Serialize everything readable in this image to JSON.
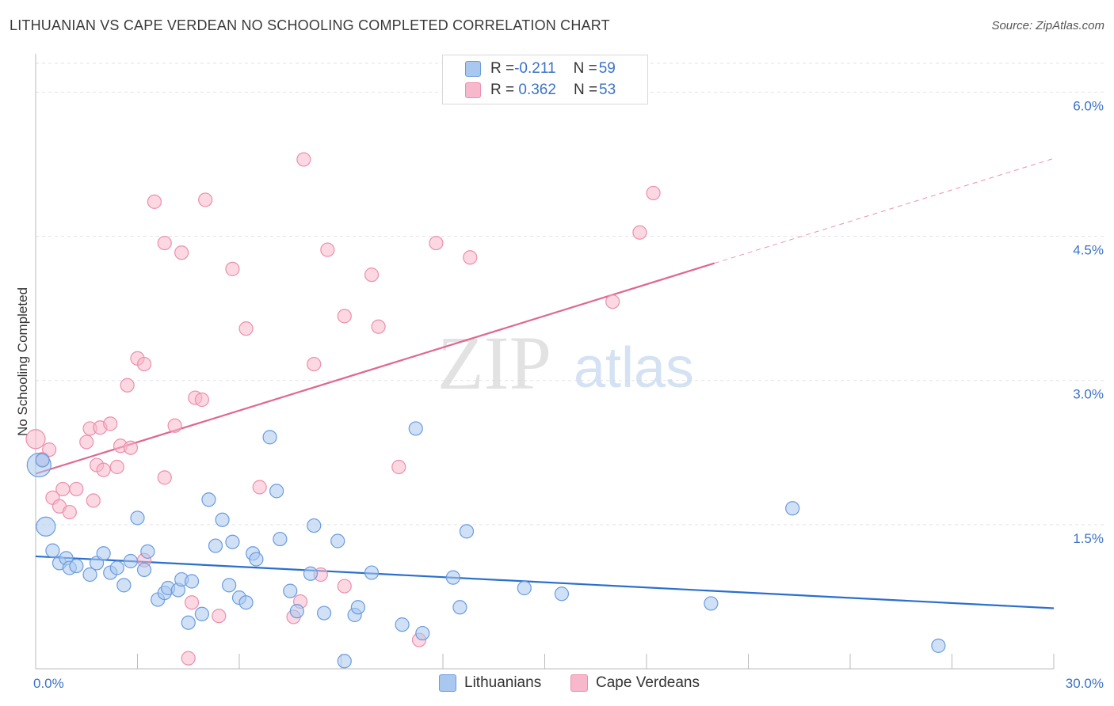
{
  "title": "LITHUANIAN VS CAPE VERDEAN NO SCHOOLING COMPLETED CORRELATION CHART",
  "source": "Source: ZipAtlas.com",
  "watermark": {
    "zip": "ZIP",
    "atlas": "atlas"
  },
  "colors": {
    "blue_fill": "#a9c8ef",
    "blue_stroke": "#6a9be0",
    "blue_line": "#2a6fce",
    "pink_fill": "#f7b8cb",
    "pink_stroke": "#ec8fac",
    "pink_line": "#e0678f",
    "axis_text": "#3a72c8",
    "grid": "#e3e3e3"
  },
  "legend": {
    "rows": [
      {
        "r_label": "R = ",
        "r_value": "-0.211",
        "n_label": "N = ",
        "n_value": "59",
        "color": "#a9c8ef",
        "stroke": "#6a9be0"
      },
      {
        "r_label": "R = ",
        "r_value": " 0.362",
        "n_label": "N = ",
        "n_value": "53",
        "color": "#f7b8cb",
        "stroke": "#ec8fac"
      }
    ]
  },
  "chart_data": {
    "type": "scatter",
    "title": "LITHUANIAN VS CAPE VERDEAN NO SCHOOLING COMPLETED CORRELATION CHART",
    "xlabel": "",
    "ylabel": "No Schooling Completed",
    "xlim": [
      0,
      30
    ],
    "ylim": [
      0,
      6.3
    ],
    "x_tick_labels": [
      "0.0%",
      "30.0%"
    ],
    "y_ticks": [
      1.5,
      3.0,
      4.5,
      6.0
    ],
    "y_tick_labels": [
      "1.5%",
      "3.0%",
      "4.5%",
      "6.0%"
    ],
    "grid": true,
    "legend_position": "top-center",
    "series": [
      {
        "name": "Lithuanians",
        "trend": {
          "x0": 0,
          "y0": 1.17,
          "x1": 30,
          "y1": 0.63
        },
        "points": [
          [
            0.1,
            2.12,
            "big"
          ],
          [
            0.3,
            1.48,
            "med"
          ],
          [
            0.5,
            1.23
          ],
          [
            0.7,
            1.1
          ],
          [
            0.9,
            1.15
          ],
          [
            1.0,
            1.05
          ],
          [
            1.2,
            1.07
          ],
          [
            1.6,
            0.98
          ],
          [
            1.8,
            1.1
          ],
          [
            2.0,
            1.2
          ],
          [
            2.2,
            1.0
          ],
          [
            2.4,
            1.05
          ],
          [
            2.6,
            0.87
          ],
          [
            2.8,
            1.12
          ],
          [
            3.0,
            1.57
          ],
          [
            3.2,
            1.03
          ],
          [
            3.3,
            1.22
          ],
          [
            3.6,
            0.72
          ],
          [
            3.8,
            0.79
          ],
          [
            3.9,
            0.84
          ],
          [
            4.2,
            0.82
          ],
          [
            4.3,
            0.93
          ],
          [
            4.5,
            0.48
          ],
          [
            4.6,
            0.91
          ],
          [
            4.9,
            0.57
          ],
          [
            5.1,
            1.76
          ],
          [
            5.3,
            1.28
          ],
          [
            5.5,
            1.55
          ],
          [
            5.7,
            0.87
          ],
          [
            5.8,
            1.32
          ],
          [
            6.0,
            0.74
          ],
          [
            6.2,
            0.69
          ],
          [
            6.4,
            1.2
          ],
          [
            6.5,
            1.14
          ],
          [
            6.9,
            2.41
          ],
          [
            7.1,
            1.85
          ],
          [
            7.2,
            1.35
          ],
          [
            7.5,
            0.81
          ],
          [
            7.7,
            0.6
          ],
          [
            8.1,
            0.99
          ],
          [
            8.2,
            1.49
          ],
          [
            8.5,
            0.58
          ],
          [
            8.9,
            1.33
          ],
          [
            9.1,
            0.08
          ],
          [
            9.4,
            0.56
          ],
          [
            9.5,
            0.64
          ],
          [
            9.9,
            1.0
          ],
          [
            10.8,
            0.46
          ],
          [
            11.2,
            2.5
          ],
          [
            11.4,
            0.37
          ],
          [
            12.3,
            0.95
          ],
          [
            12.5,
            0.64
          ],
          [
            12.7,
            1.43
          ],
          [
            14.4,
            0.84
          ],
          [
            15.5,
            0.78
          ],
          [
            19.9,
            0.68
          ],
          [
            22.3,
            1.67
          ],
          [
            26.6,
            0.24
          ],
          [
            0.2,
            2.17
          ]
        ]
      },
      {
        "name": "Cape Verdeans",
        "trend": {
          "x0": 0,
          "y0": 2.03,
          "x1": 20,
          "y1": 4.22,
          "dash_x1": 30,
          "dash_y1": 5.31
        },
        "points": [
          [
            0.0,
            2.39,
            "med"
          ],
          [
            0.2,
            2.18
          ],
          [
            0.4,
            2.28
          ],
          [
            0.5,
            1.78
          ],
          [
            0.7,
            1.69
          ],
          [
            0.8,
            1.87
          ],
          [
            1.0,
            1.63
          ],
          [
            1.2,
            1.87
          ],
          [
            1.5,
            2.36
          ],
          [
            1.6,
            2.5
          ],
          [
            1.7,
            1.75
          ],
          [
            1.8,
            2.12
          ],
          [
            1.9,
            2.51
          ],
          [
            2.0,
            2.07
          ],
          [
            2.2,
            2.55
          ],
          [
            2.4,
            2.1
          ],
          [
            2.5,
            2.32
          ],
          [
            2.7,
            2.95
          ],
          [
            2.8,
            2.3
          ],
          [
            3.0,
            3.23
          ],
          [
            3.2,
            3.17
          ],
          [
            3.2,
            1.13
          ],
          [
            3.5,
            4.86
          ],
          [
            3.8,
            4.43
          ],
          [
            3.8,
            1.99
          ],
          [
            4.1,
            2.53
          ],
          [
            4.3,
            4.33
          ],
          [
            4.5,
            0.11
          ],
          [
            4.6,
            0.69
          ],
          [
            4.7,
            2.82
          ],
          [
            4.9,
            2.8
          ],
          [
            5.0,
            4.88
          ],
          [
            5.4,
            0.55
          ],
          [
            5.8,
            4.16
          ],
          [
            6.2,
            3.54
          ],
          [
            6.6,
            1.89
          ],
          [
            7.6,
            0.54
          ],
          [
            7.8,
            0.7
          ],
          [
            7.9,
            5.3
          ],
          [
            8.2,
            3.17
          ],
          [
            8.4,
            0.98
          ],
          [
            8.6,
            4.36
          ],
          [
            9.1,
            3.67
          ],
          [
            9.1,
            0.86
          ],
          [
            9.9,
            4.1
          ],
          [
            10.1,
            3.56
          ],
          [
            10.7,
            2.1
          ],
          [
            11.3,
            0.3
          ],
          [
            11.8,
            4.43
          ],
          [
            12.8,
            4.28
          ],
          [
            17.0,
            3.82
          ],
          [
            17.8,
            4.54
          ],
          [
            18.2,
            4.95
          ]
        ]
      }
    ]
  },
  "bottom_legend": [
    {
      "label": "Lithuanians",
      "color": "#a9c8ef",
      "stroke": "#6a9be0"
    },
    {
      "label": "Cape Verdeans",
      "color": "#f7b8cb",
      "stroke": "#ec8fac"
    }
  ]
}
